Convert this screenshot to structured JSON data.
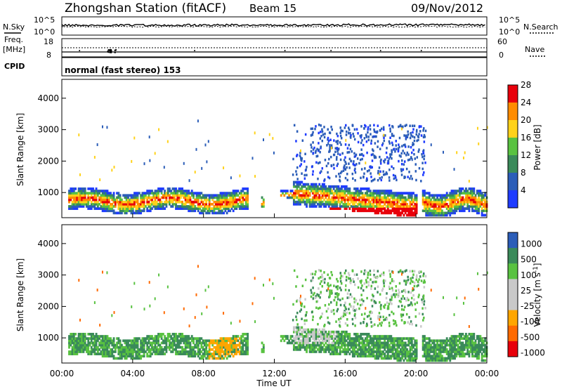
{
  "header": {
    "station": "Zhongshan Station (fitACF)",
    "beam": "Beam 15",
    "date": "09/Nov/2012"
  },
  "top_panels": {
    "nsky_label": "N.Sky",
    "nsky_tick_hi": "10^5",
    "nsky_tick_lo": "10^0",
    "nsearch_label": "N.Search",
    "freq_label": "Freq.",
    "freq_unit": "[MHz]",
    "freq_tick_hi": "18",
    "freq_tick_lo": "8",
    "nave_label": "Nave",
    "nave_tick_hi": "60",
    "nave_tick_lo": "0",
    "cpid_label": "CPID",
    "cpid_text": "normal (fast stereo) 153"
  },
  "colors": {
    "power": [
      "#1f3cff",
      "#2b5db8",
      "#3a8a5a",
      "#59c241",
      "#ffd21a",
      "#ff8c00",
      "#e8000b"
    ],
    "velocity": [
      "#e8000b",
      "#ff6a00",
      "#ffa600",
      "#c9c9c9",
      "#c9c9c9",
      "#59c241",
      "#3a8a5a",
      "#2b5db8"
    ]
  },
  "chart_data": [
    {
      "type": "heatmap",
      "name": "power",
      "ylabel": "Slant Range [km]",
      "ylim": [
        200,
        4600
      ],
      "yticks": [
        "1000",
        "2000",
        "3000",
        "4000"
      ],
      "colorbar_label": "Power [dB]",
      "colorbar_ticks": [
        "4",
        "8",
        "12",
        "16",
        "20",
        "24",
        "28"
      ],
      "xlim": [
        0,
        24
      ]
    },
    {
      "type": "heatmap",
      "name": "velocity",
      "ylabel": "Slant Range [km]",
      "ylim": [
        200,
        4600
      ],
      "yticks": [
        "1000",
        "2000",
        "3000",
        "4000"
      ],
      "colorbar_label": "Velocity [m s-1]",
      "colorbar_ticks": [
        "1000",
        "500",
        "100",
        "25",
        "-25",
        "-100",
        "-500",
        "-1000"
      ],
      "xlim": [
        0,
        24
      ],
      "xlabel": "Time UT",
      "xticks": [
        "00:00",
        "04:00",
        "08:00",
        "12:00",
        "16:00",
        "20:00",
        "00:00"
      ]
    }
  ]
}
